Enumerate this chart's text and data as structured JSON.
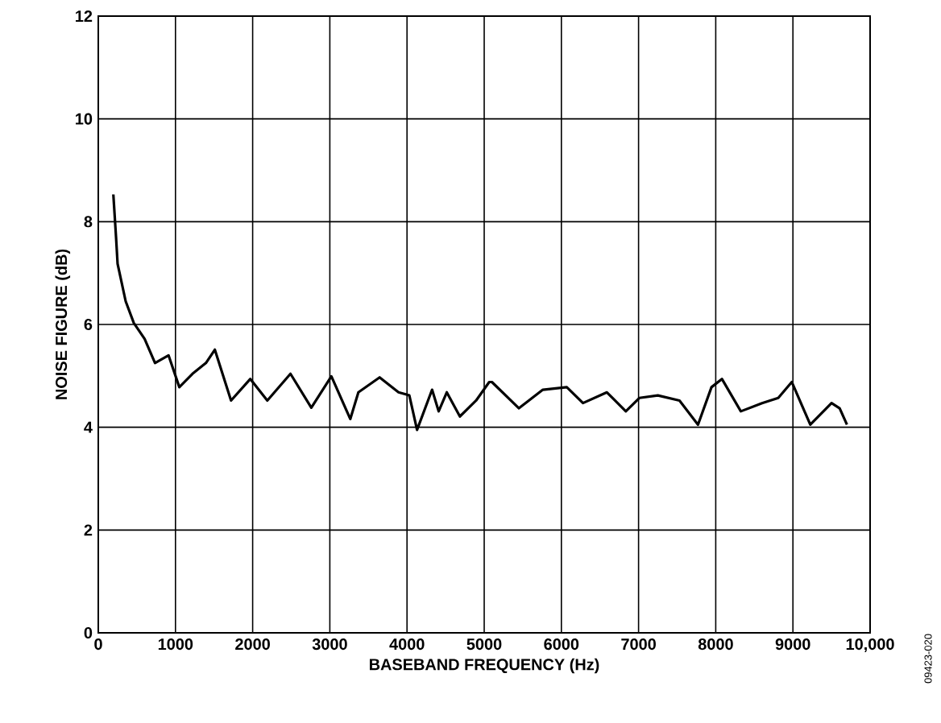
{
  "chart_data": {
    "type": "line",
    "xlabel": "BASEBAND FREQUENCY (Hz)",
    "ylabel": "NOISE FIGURE (dB)",
    "annotations": [
      "09423-020"
    ],
    "x": [
      195,
      230,
      250,
      355,
      460,
      600,
      735,
      910,
      1050,
      1220,
      1395,
      1510,
      1720,
      1970,
      2190,
      2490,
      2760,
      3020,
      3265,
      3370,
      3645,
      3890,
      4030,
      4130,
      4325,
      4410,
      4515,
      4685,
      4895,
      5065,
      5100,
      5450,
      5760,
      6070,
      6280,
      6590,
      6835,
      7010,
      7250,
      7530,
      7770,
      7945,
      8080,
      8325,
      8600,
      8810,
      8985,
      9225,
      9500,
      9605,
      9700
    ],
    "series": [
      {
        "color": "#000000",
        "values": [
          8.53,
          7.7,
          7.18,
          6.45,
          6.03,
          5.72,
          5.25,
          5.4,
          4.78,
          5.04,
          5.25,
          5.51,
          4.52,
          4.94,
          4.52,
          5.04,
          4.38,
          4.99,
          4.16,
          4.68,
          4.97,
          4.68,
          4.62,
          3.95,
          4.73,
          4.31,
          4.68,
          4.21,
          4.52,
          4.88,
          4.88,
          4.37,
          4.73,
          4.78,
          4.47,
          4.68,
          4.31,
          4.57,
          4.62,
          4.52,
          4.05,
          4.78,
          4.94,
          4.31,
          4.47,
          4.57,
          4.88,
          4.05,
          4.47,
          4.37,
          4.05
        ]
      }
    ],
    "xlim": [
      0,
      10000
    ],
    "ylim": [
      0,
      12
    ],
    "xticks": [
      0,
      1000,
      2000,
      3000,
      4000,
      5000,
      6000,
      7000,
      8000,
      9000,
      {
        "value": 10000,
        "label": "10,000"
      }
    ],
    "yticks": [
      0,
      2,
      4,
      6,
      8,
      10,
      12
    ],
    "grid": true,
    "line_style": "solid",
    "marker": "none"
  }
}
